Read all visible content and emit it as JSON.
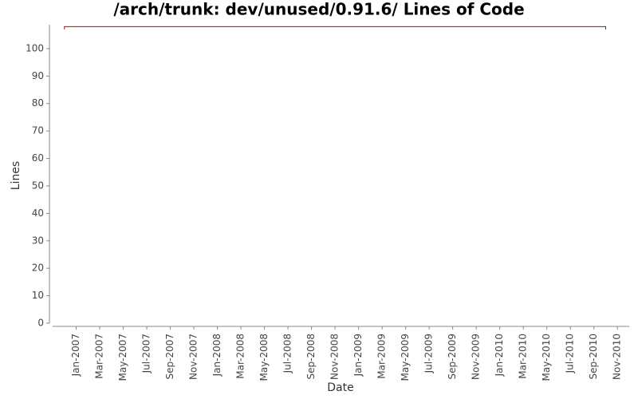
{
  "chart_data": {
    "type": "line",
    "title": "/arch/trunk: dev/unused/0.91.6/ Lines of Code",
    "x_label": "Date",
    "y_label": "Lines",
    "x": [
      "2006-12",
      "2006-12",
      "2010-10",
      "2010-10"
    ],
    "series": [
      {
        "name": "Lines",
        "color": "#c00000",
        "values": [
          107,
          108,
          108,
          107
        ]
      }
    ],
    "xlim": [
      "2006-11",
      "2010-12"
    ],
    "xticks": [
      {
        "value": "2007-01",
        "label": "Jan-2007"
      },
      {
        "value": "2007-03",
        "label": "Mar-2007"
      },
      {
        "value": "2007-05",
        "label": "May-2007"
      },
      {
        "value": "2007-07",
        "label": "Jul-2007"
      },
      {
        "value": "2007-09",
        "label": "Sep-2007"
      },
      {
        "value": "2007-11",
        "label": "Nov-2007"
      },
      {
        "value": "2008-01",
        "label": "Jan-2008"
      },
      {
        "value": "2008-03",
        "label": "Mar-2008"
      },
      {
        "value": "2008-05",
        "label": "May-2008"
      },
      {
        "value": "2008-07",
        "label": "Jul-2008"
      },
      {
        "value": "2008-09",
        "label": "Sep-2008"
      },
      {
        "value": "2008-11",
        "label": "Nov-2008"
      },
      {
        "value": "2009-01",
        "label": "Jan-2009"
      },
      {
        "value": "2009-03",
        "label": "Mar-2009"
      },
      {
        "value": "2009-05",
        "label": "May-2009"
      },
      {
        "value": "2009-07",
        "label": "Jul-2009"
      },
      {
        "value": "2009-09",
        "label": "Sep-2009"
      },
      {
        "value": "2009-11",
        "label": "Nov-2009"
      },
      {
        "value": "2010-01",
        "label": "Jan-2010"
      },
      {
        "value": "2010-03",
        "label": "Mar-2010"
      },
      {
        "value": "2010-05",
        "label": "May-2010"
      },
      {
        "value": "2010-07",
        "label": "Jul-2010"
      },
      {
        "value": "2010-09",
        "label": "Sep-2010"
      },
      {
        "value": "2010-11",
        "label": "Nov-2010"
      }
    ],
    "ylim": [
      0,
      108.7
    ],
    "yticks": [
      0,
      10,
      20,
      30,
      40,
      50,
      60,
      70,
      80,
      90,
      100
    ],
    "grid": false
  }
}
